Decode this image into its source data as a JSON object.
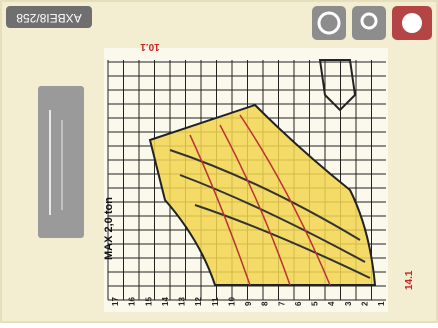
{
  "header": {
    "code": "AXBEI8/258"
  },
  "chart": {
    "capacity": "MAX 2,0 ton",
    "top_mark": "10.1",
    "side_mark": "14.1",
    "axis_numbers": [
      "17",
      "16",
      "15",
      "14",
      "13",
      "12",
      "11",
      "10",
      "9",
      "8",
      "7",
      "6",
      "5",
      "4",
      "3",
      "2",
      "1"
    ]
  }
}
